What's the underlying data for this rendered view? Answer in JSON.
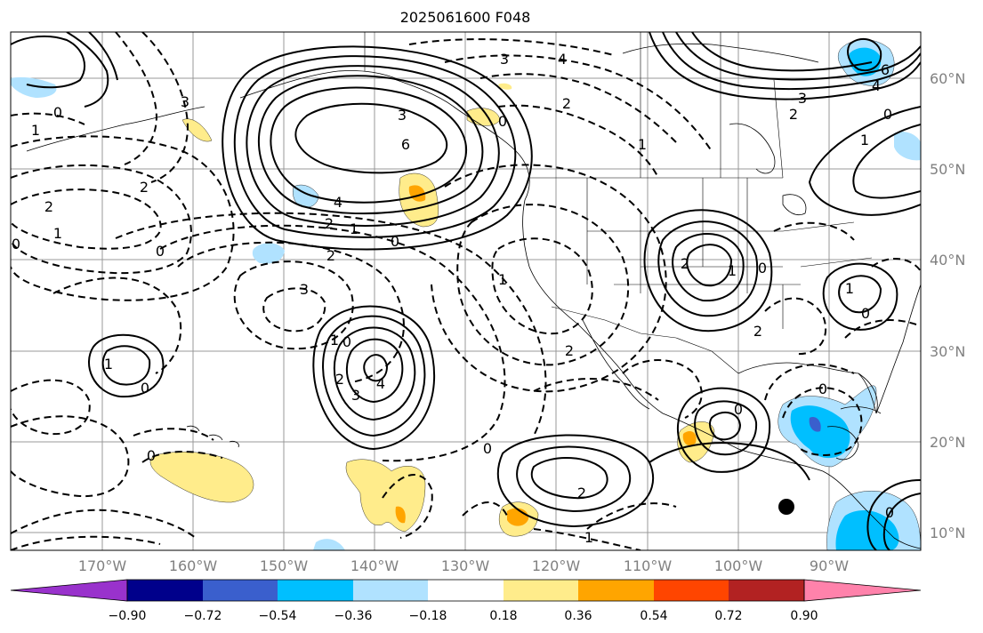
{
  "title": "2025061600 F048",
  "lon_labels": [
    "170°W",
    "160°W",
    "150°W",
    "140°W",
    "130°W",
    "120°W",
    "110°W",
    "100°W",
    "90°W"
  ],
  "lat_labels": [
    "60°N",
    "50°N",
    "40°N",
    "30°N",
    "20°N",
    "10°N"
  ],
  "colorbar": {
    "labels": [
      "−0.90",
      "−0.72",
      "−0.54",
      "−0.36",
      "−0.18",
      "0.18",
      "0.36",
      "0.54",
      "0.72",
      "0.90"
    ],
    "colors": [
      "#9932cc",
      "#00008b",
      "#3a5fcd",
      "#00bfff",
      "#b0e2ff",
      "#ffffff",
      "#ffec8b",
      "#ffa500",
      "#ff4500",
      "#b22222",
      "#ff82ab"
    ]
  },
  "contour_labels": {
    "main_high": "6",
    "main_high_4": "4",
    "main_high_3": "3",
    "main_high_2": "2",
    "main_high_1": "1",
    "main_zero": "0",
    "ne_6": "6",
    "ne_4": "4",
    "ne_3": "3",
    "ne_2": "2",
    "ne_1": "1",
    "ne_0": "0",
    "nw_0": "0",
    "nw_1": "1",
    "nw_2": "2",
    "nw_3": "3",
    "n_4": "4",
    "n_3": "3",
    "n_2": "2",
    "n_1": "1",
    "n_0": "0",
    "west_2": "2",
    "west_1": "1",
    "west_0": "0",
    "west_neg0": "0",
    "mid_3": "3",
    "mid_2": "2",
    "low_4": "4",
    "low_3": "3",
    "low_2": "2",
    "low_1": "1",
    "low_0": "0",
    "w_low_1": "1",
    "w_low_0": "0",
    "us_2": "2",
    "us_1": "1",
    "us_0": "0",
    "us_m2": "2",
    "east_1": "1",
    "east_0": "0",
    "sw_2": "2",
    "sw_0": "0",
    "sw_1": "1",
    "mex_2": "2",
    "mex_0": "0",
    "gulf_0": "0",
    "hi_0": "0",
    "cen_1": "1",
    "far_e_0": "0"
  }
}
